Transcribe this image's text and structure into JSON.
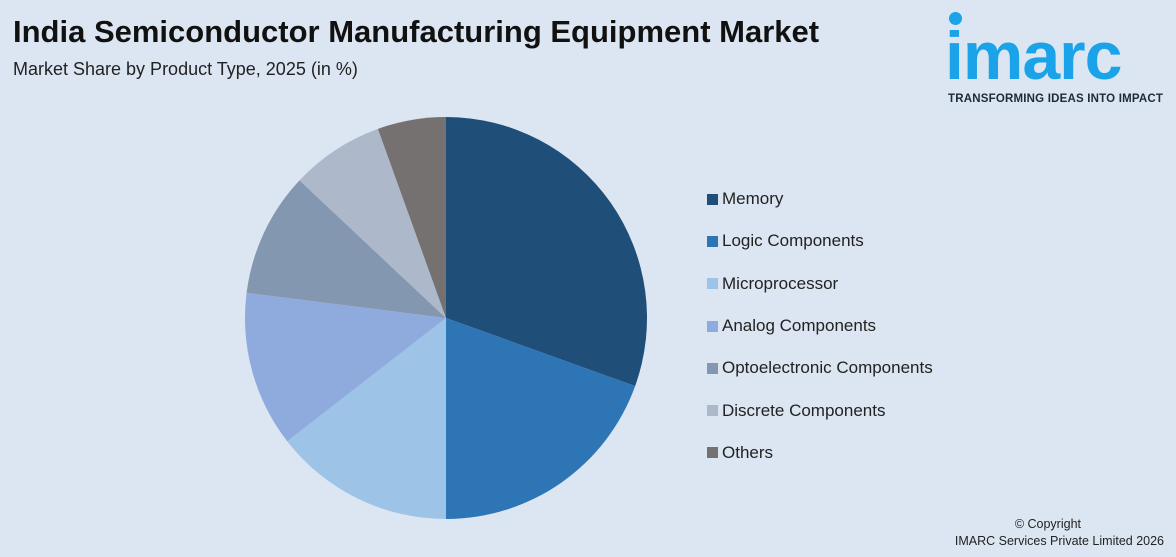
{
  "header": {
    "title": "India Semiconductor Manufacturing Equipment Market",
    "subtitle": "Market Share by Product Type, 2025 (in %)"
  },
  "logo": {
    "word": "imarc",
    "tagline": "TRANSFORMING IDEAS INTO IMPACT",
    "color": "#1aa3e8"
  },
  "copyright": {
    "line1": "© Copyright",
    "line2": "IMARC Services Private Limited 2026"
  },
  "chart_data": {
    "type": "pie",
    "title": "India Semiconductor Manufacturing Equipment Market",
    "subtitle": "Market Share by Product Type, 2025 (in %)",
    "legend_position": "right",
    "start_angle": "12 o'clock, clockwise",
    "categories": [
      "Memory",
      "Logic Components",
      "Microprocessor",
      "Analog Components",
      "Optoelectronic Components",
      "Discrete Components",
      "Others"
    ],
    "values": [
      30.5,
      19.5,
      14.5,
      12.5,
      10.0,
      7.5,
      5.5
    ],
    "colors": [
      "#1f4e79",
      "#2e75b6",
      "#9dc3e6",
      "#8faadc",
      "#8497b0",
      "#adb9ca",
      "#767171"
    ]
  }
}
